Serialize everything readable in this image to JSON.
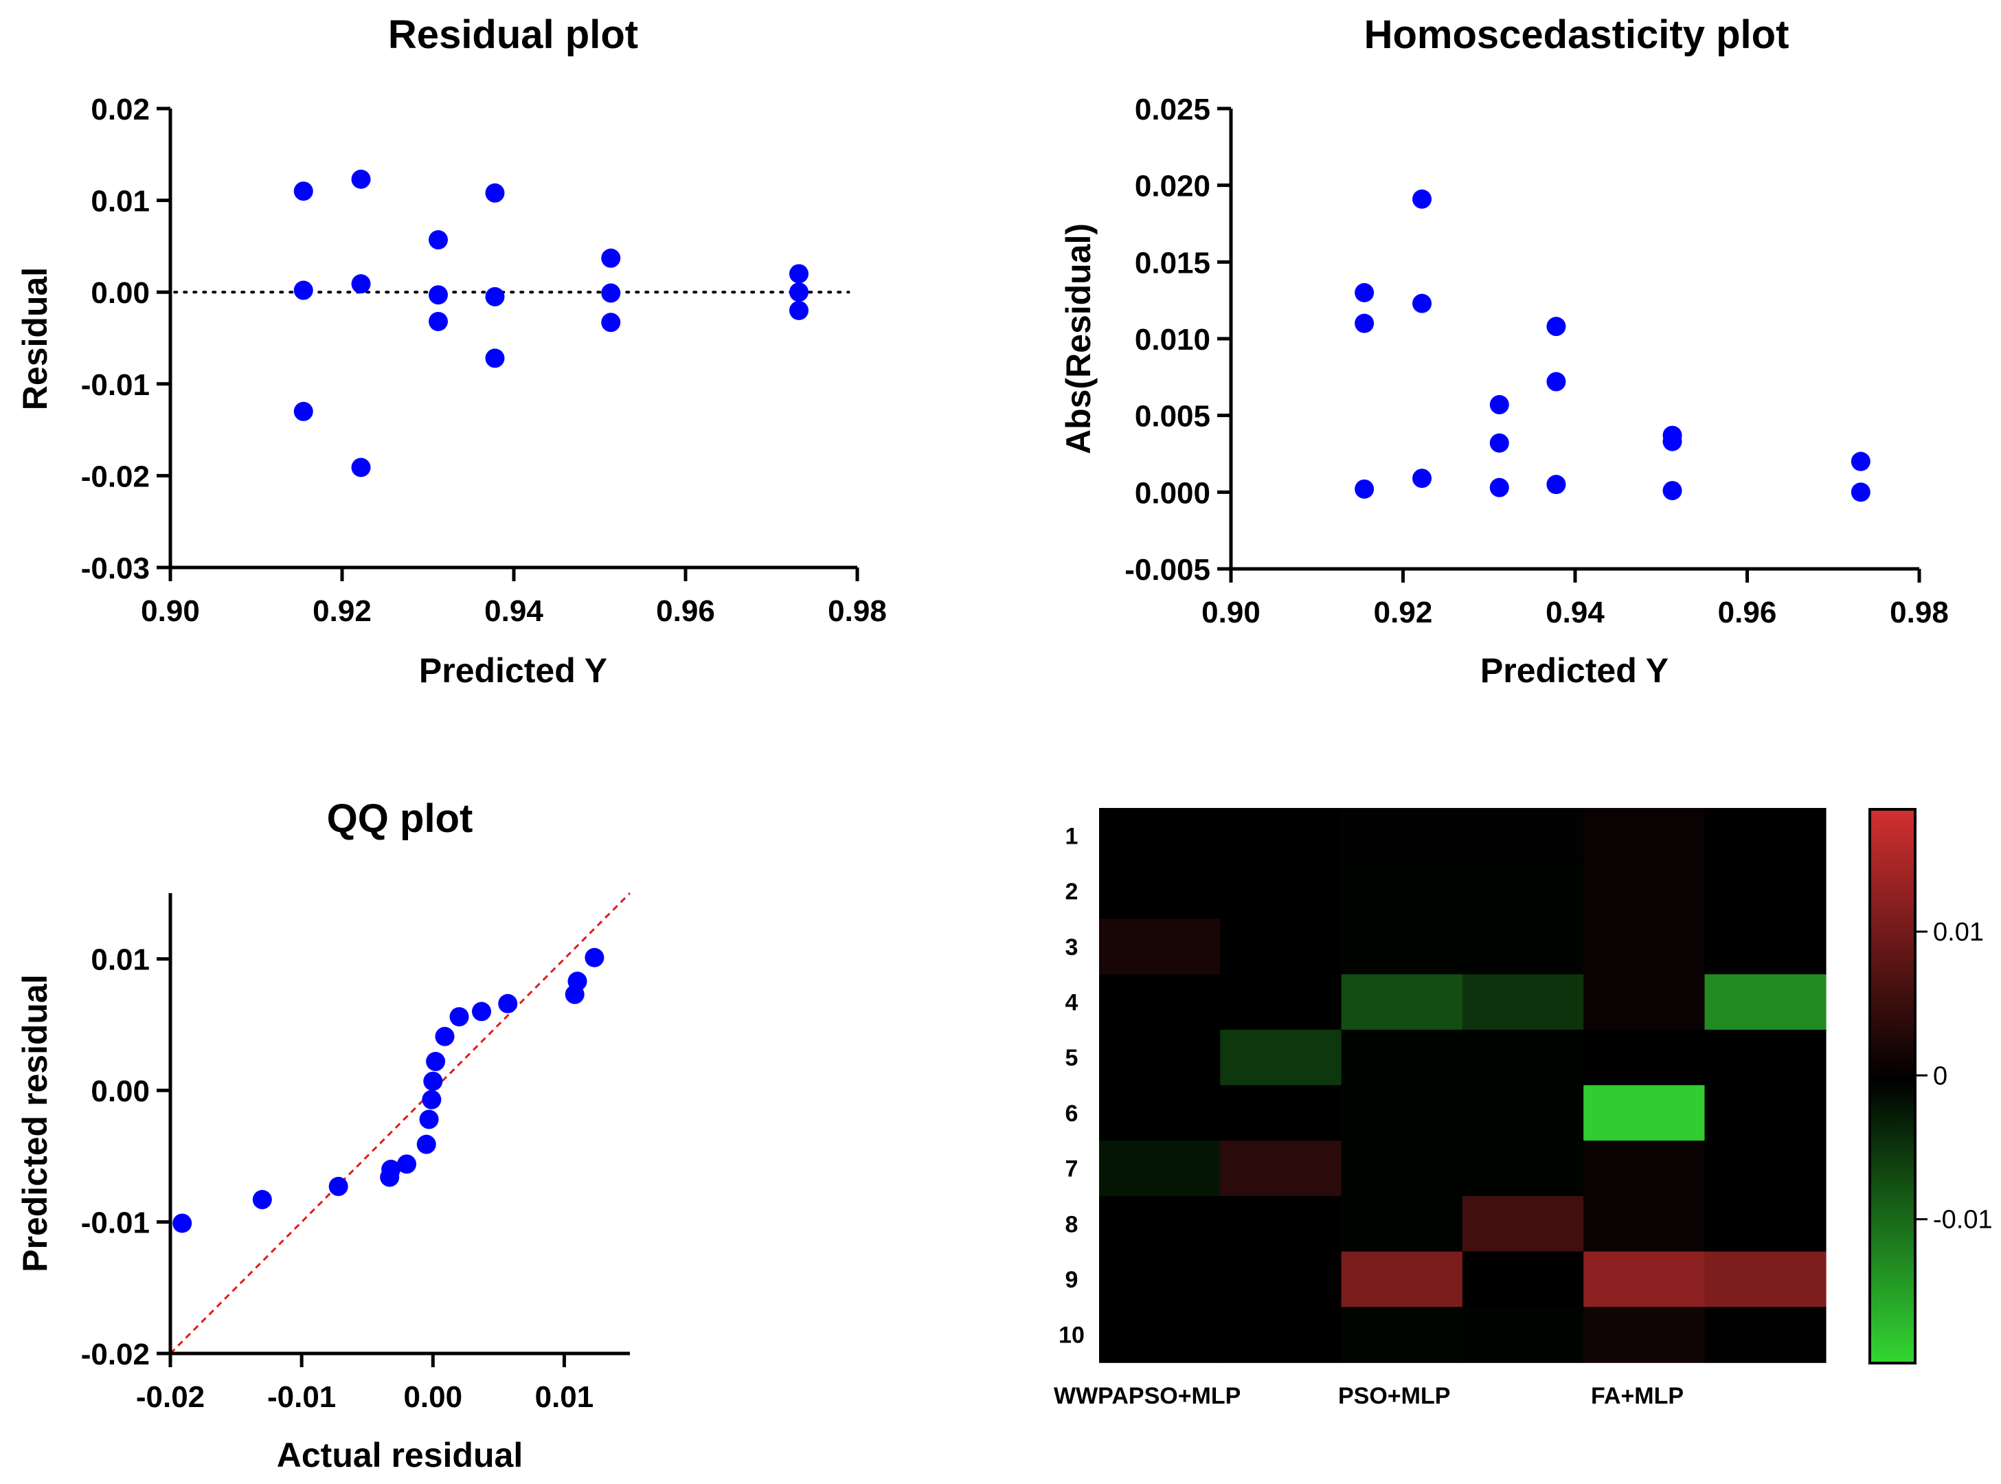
{
  "chart_data": [
    {
      "id": "residual",
      "type": "scatter",
      "title": "Residual plot",
      "xlabel": "Predicted Y",
      "ylabel": "Residual",
      "xlim": [
        0.9,
        0.98
      ],
      "ylim": [
        -0.03,
        0.02
      ],
      "xticks": [
        0.9,
        0.92,
        0.94,
        0.96,
        0.98
      ],
      "xtick_labels": [
        "0.90",
        "0.92",
        "0.94",
        "0.96",
        "0.98"
      ],
      "yticks": [
        -0.03,
        -0.02,
        -0.01,
        0.0,
        0.01,
        0.02
      ],
      "ytick_labels": [
        "-0.03",
        "-0.02",
        "-0.01",
        "0.00",
        "0.01",
        "0.02"
      ],
      "reference_line": {
        "style": "dotted",
        "y": 0.0,
        "x_range": [
          0.9005,
          0.979
        ]
      },
      "marker_color": "#0000ff",
      "points": [
        {
          "x": 0.9155,
          "y": 0.011
        },
        {
          "x": 0.9155,
          "y": 0.0002
        },
        {
          "x": 0.9155,
          "y": -0.013
        },
        {
          "x": 0.9222,
          "y": 0.0123
        },
        {
          "x": 0.9222,
          "y": 0.0009
        },
        {
          "x": 0.9222,
          "y": -0.0191
        },
        {
          "x": 0.9312,
          "y": 0.0057
        },
        {
          "x": 0.9312,
          "y": -0.0003
        },
        {
          "x": 0.9312,
          "y": -0.0032
        },
        {
          "x": 0.9378,
          "y": 0.0108
        },
        {
          "x": 0.9378,
          "y": -0.0005
        },
        {
          "x": 0.9378,
          "y": -0.0072
        },
        {
          "x": 0.9513,
          "y": 0.0037
        },
        {
          "x": 0.9513,
          "y": -0.0001
        },
        {
          "x": 0.9513,
          "y": -0.0033
        },
        {
          "x": 0.9732,
          "y": 0.002
        },
        {
          "x": 0.9732,
          "y": 0.0
        },
        {
          "x": 0.9732,
          "y": -0.002
        }
      ]
    },
    {
      "id": "homoscedasticity",
      "type": "scatter",
      "title": "Homoscedasticity plot",
      "xlabel": "Predicted Y",
      "ylabel": "Abs(Residual)",
      "xlim": [
        0.9,
        0.98
      ],
      "ylim": [
        -0.005,
        0.025
      ],
      "xticks": [
        0.9,
        0.92,
        0.94,
        0.96,
        0.98
      ],
      "xtick_labels": [
        "0.90",
        "0.92",
        "0.94",
        "0.96",
        "0.98"
      ],
      "yticks": [
        -0.005,
        0.0,
        0.005,
        0.01,
        0.015,
        0.02,
        0.025
      ],
      "ytick_labels": [
        "-0.005",
        "0.000",
        "0.005",
        "0.010",
        "0.015",
        "0.020",
        "0.025"
      ],
      "marker_color": "#0000ff",
      "points": [
        {
          "x": 0.9155,
          "y": 0.013
        },
        {
          "x": 0.9155,
          "y": 0.011
        },
        {
          "x": 0.9155,
          "y": 0.0002
        },
        {
          "x": 0.9222,
          "y": 0.0191
        },
        {
          "x": 0.9222,
          "y": 0.0123
        },
        {
          "x": 0.9222,
          "y": 0.0009
        },
        {
          "x": 0.9312,
          "y": 0.0057
        },
        {
          "x": 0.9312,
          "y": 0.0032
        },
        {
          "x": 0.9312,
          "y": 0.0003
        },
        {
          "x": 0.9378,
          "y": 0.0108
        },
        {
          "x": 0.9378,
          "y": 0.0072
        },
        {
          "x": 0.9378,
          "y": 0.0005
        },
        {
          "x": 0.9513,
          "y": 0.0037
        },
        {
          "x": 0.9513,
          "y": 0.0033
        },
        {
          "x": 0.9513,
          "y": 0.0001
        },
        {
          "x": 0.9732,
          "y": 0.002
        },
        {
          "x": 0.9732,
          "y": 0.0
        }
      ]
    },
    {
      "id": "qq",
      "type": "scatter",
      "title": "QQ plot",
      "xlabel": "Actual residual",
      "ylabel": "Predicted residual",
      "xlim": [
        -0.02,
        0.015
      ],
      "ylim": [
        -0.02,
        0.015
      ],
      "xticks": [
        -0.02,
        -0.01,
        0.0,
        0.01
      ],
      "xtick_labels": [
        "-0.02",
        "-0.01",
        "0.00",
        "0.01"
      ],
      "yticks": [
        -0.02,
        -0.01,
        0.0,
        0.01
      ],
      "ytick_labels": [
        "-0.02",
        "-0.01",
        "0.00",
        "0.01"
      ],
      "reference_line": {
        "style": "dashed",
        "color": "#e31a1c",
        "from": [
          -0.02,
          -0.02
        ],
        "to": [
          0.015,
          0.015
        ]
      },
      "marker_color": "#0000ff",
      "points": [
        {
          "x": -0.0191,
          "y": -0.0101
        },
        {
          "x": -0.013,
          "y": -0.0083
        },
        {
          "x": -0.0072,
          "y": -0.0073
        },
        {
          "x": -0.0033,
          "y": -0.0066
        },
        {
          "x": -0.0032,
          "y": -0.006
        },
        {
          "x": -0.002,
          "y": -0.0056
        },
        {
          "x": -0.0005,
          "y": -0.0041
        },
        {
          "x": -0.0003,
          "y": -0.0022
        },
        {
          "x": -0.0001,
          "y": -0.0007
        },
        {
          "x": 0.0,
          "y": 0.0007
        },
        {
          "x": 0.0002,
          "y": 0.0022
        },
        {
          "x": 0.0009,
          "y": 0.0041
        },
        {
          "x": 0.002,
          "y": 0.0056
        },
        {
          "x": 0.0037,
          "y": 0.006
        },
        {
          "x": 0.0057,
          "y": 0.0066
        },
        {
          "x": 0.0108,
          "y": 0.0073
        },
        {
          "x": 0.011,
          "y": 0.0083
        },
        {
          "x": 0.0123,
          "y": 0.0101
        }
      ]
    },
    {
      "id": "heatmap",
      "type": "heatmap",
      "title": "",
      "row_labels": [
        "1",
        "2",
        "3",
        "4",
        "5",
        "6",
        "7",
        "8",
        "9",
        "10"
      ],
      "column_group_labels": [
        "WWPAPSO+MLP",
        "PSO+MLP",
        "FA+MLP"
      ],
      "columns_per_group": 2,
      "color_scale": {
        "min": -0.02,
        "mid": 0.0,
        "max": 0.0185,
        "low_color": "#33d633",
        "mid_color": "#000000",
        "high_color": "#d23030"
      },
      "colorbar_ticks": [
        0.01,
        0.0,
        -0.01
      ],
      "colorbar_tick_labels": [
        "0.01",
        "0",
        "-0.01"
      ],
      "values": [
        [
          0.0,
          0.0,
          -0.0002,
          -0.0002,
          0.0009,
          0.0
        ],
        [
          0.0,
          0.0,
          -0.0003,
          -0.0003,
          0.0009,
          0.0
        ],
        [
          0.0021,
          0.0,
          -0.0003,
          -0.0003,
          0.0009,
          0.0
        ],
        [
          0.0,
          0.0,
          -0.0072,
          -0.0048,
          0.0009,
          -0.013
        ],
        [
          0.0,
          -0.0052,
          -0.0003,
          -0.0003,
          0.0,
          0.0
        ],
        [
          0.0,
          0.0,
          -0.0003,
          -0.0003,
          -0.0191,
          0.0
        ],
        [
          -0.0021,
          0.0037,
          -0.0003,
          -0.0003,
          0.0009,
          0.0
        ],
        [
          0.0,
          0.0,
          -0.0003,
          0.0057,
          0.0009,
          0.0
        ],
        [
          0.0,
          0.0,
          0.0108,
          0.0,
          0.0123,
          0.011
        ],
        [
          0.0,
          0.0,
          -0.0005,
          -0.0003,
          0.0015,
          0.0002
        ]
      ]
    }
  ]
}
